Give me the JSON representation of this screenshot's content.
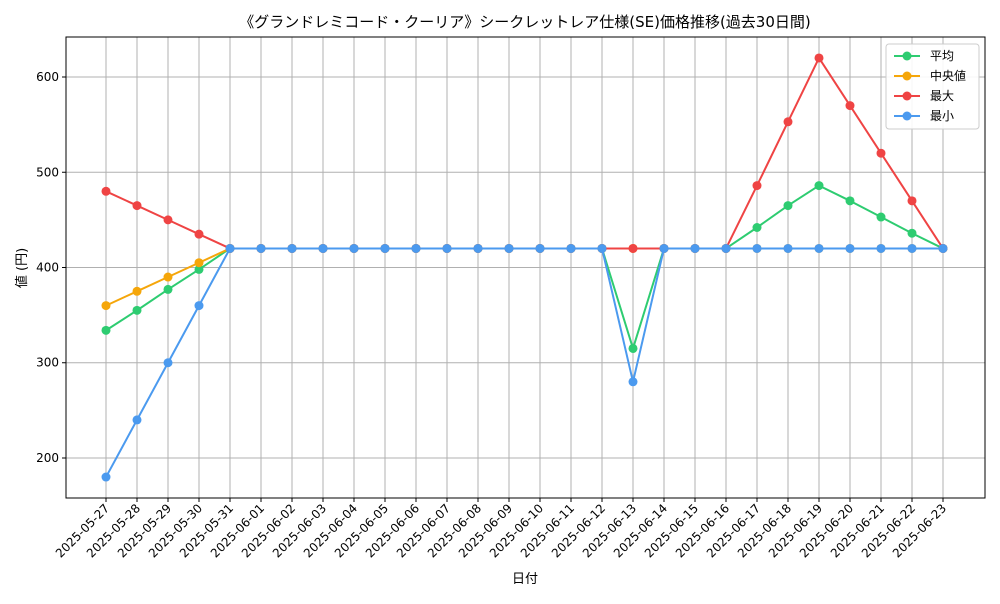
{
  "chart_data": {
    "type": "line",
    "title": "《グランドレミコード・クーリア》シークレットレア仕様(SE)価格推移(過去30日間)",
    "xlabel": "日付",
    "ylabel": "値 (円)",
    "ylim": [
      158,
      642
    ],
    "yticks": [
      200,
      300,
      400,
      500,
      600
    ],
    "grid": true,
    "legend_position": "top-right",
    "categories": [
      "2025-05-27",
      "2025-05-28",
      "2025-05-29",
      "2025-05-30",
      "2025-05-31",
      "2025-06-01",
      "2025-06-02",
      "2025-06-03",
      "2025-06-04",
      "2025-06-05",
      "2025-06-06",
      "2025-06-07",
      "2025-06-08",
      "2025-06-09",
      "2025-06-10",
      "2025-06-11",
      "2025-06-12",
      "2025-06-13",
      "2025-06-14",
      "2025-06-15",
      "2025-06-16",
      "2025-06-17",
      "2025-06-18",
      "2025-06-19",
      "2025-06-20",
      "2025-06-21",
      "2025-06-22",
      "2025-06-23"
    ],
    "series": [
      {
        "name": "平均",
        "color": "#2ecc71",
        "values": [
          334,
          355,
          377,
          398,
          420,
          420,
          420,
          420,
          420,
          420,
          420,
          420,
          420,
          420,
          420,
          420,
          420,
          315,
          420,
          420,
          420,
          442,
          465,
          486,
          470,
          453,
          436,
          420
        ]
      },
      {
        "name": "中央値",
        "color": "#f5a60a",
        "values": [
          360,
          375,
          390,
          405,
          420,
          420,
          420,
          420,
          420,
          420,
          420,
          420,
          420,
          420,
          420,
          420,
          420,
          420,
          420,
          420,
          420,
          420,
          420,
          420,
          420,
          420,
          420,
          420
        ]
      },
      {
        "name": "最大",
        "color": "#ef4444",
        "values": [
          480,
          465,
          450,
          435,
          420,
          420,
          420,
          420,
          420,
          420,
          420,
          420,
          420,
          420,
          420,
          420,
          420,
          420,
          420,
          420,
          420,
          486,
          553,
          620,
          570,
          520,
          470,
          420
        ]
      },
      {
        "name": "最小",
        "color": "#4b9aef",
        "values": [
          180,
          240,
          300,
          360,
          420,
          420,
          420,
          420,
          420,
          420,
          420,
          420,
          420,
          420,
          420,
          420,
          420,
          280,
          420,
          420,
          420,
          420,
          420,
          420,
          420,
          420,
          420,
          420
        ]
      }
    ]
  }
}
